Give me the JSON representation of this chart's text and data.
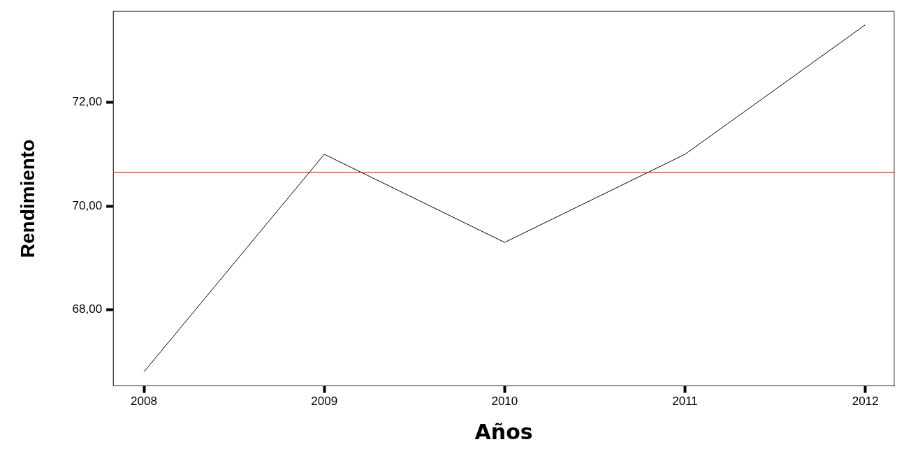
{
  "chart_data": {
    "type": "line",
    "xlabel": "Años",
    "ylabel": "Rendimiento",
    "x": [
      2008,
      2009,
      2010,
      2011,
      2012
    ],
    "series": [
      {
        "color": "#000000",
        "values": [
          66.8,
          71.0,
          69.3,
          71.0,
          73.5
        ]
      }
    ],
    "xlim": [
      2007.83,
      2012.16
    ],
    "xticks": [
      2008,
      2009,
      2010,
      2011,
      2012
    ],
    "ylim": [
      66.53,
      73.76
    ],
    "yticks": [
      {
        "value": 68,
        "label": "68,00"
      },
      {
        "value": 70,
        "label": "70,00"
      },
      {
        "value": 72,
        "label": "72,00"
      }
    ],
    "ref_lines": [
      {
        "axis": "y",
        "value": 70.65,
        "color": "#c0392b"
      }
    ],
    "grid": false,
    "legend": false,
    "marker": "none",
    "line_style": "solid"
  }
}
